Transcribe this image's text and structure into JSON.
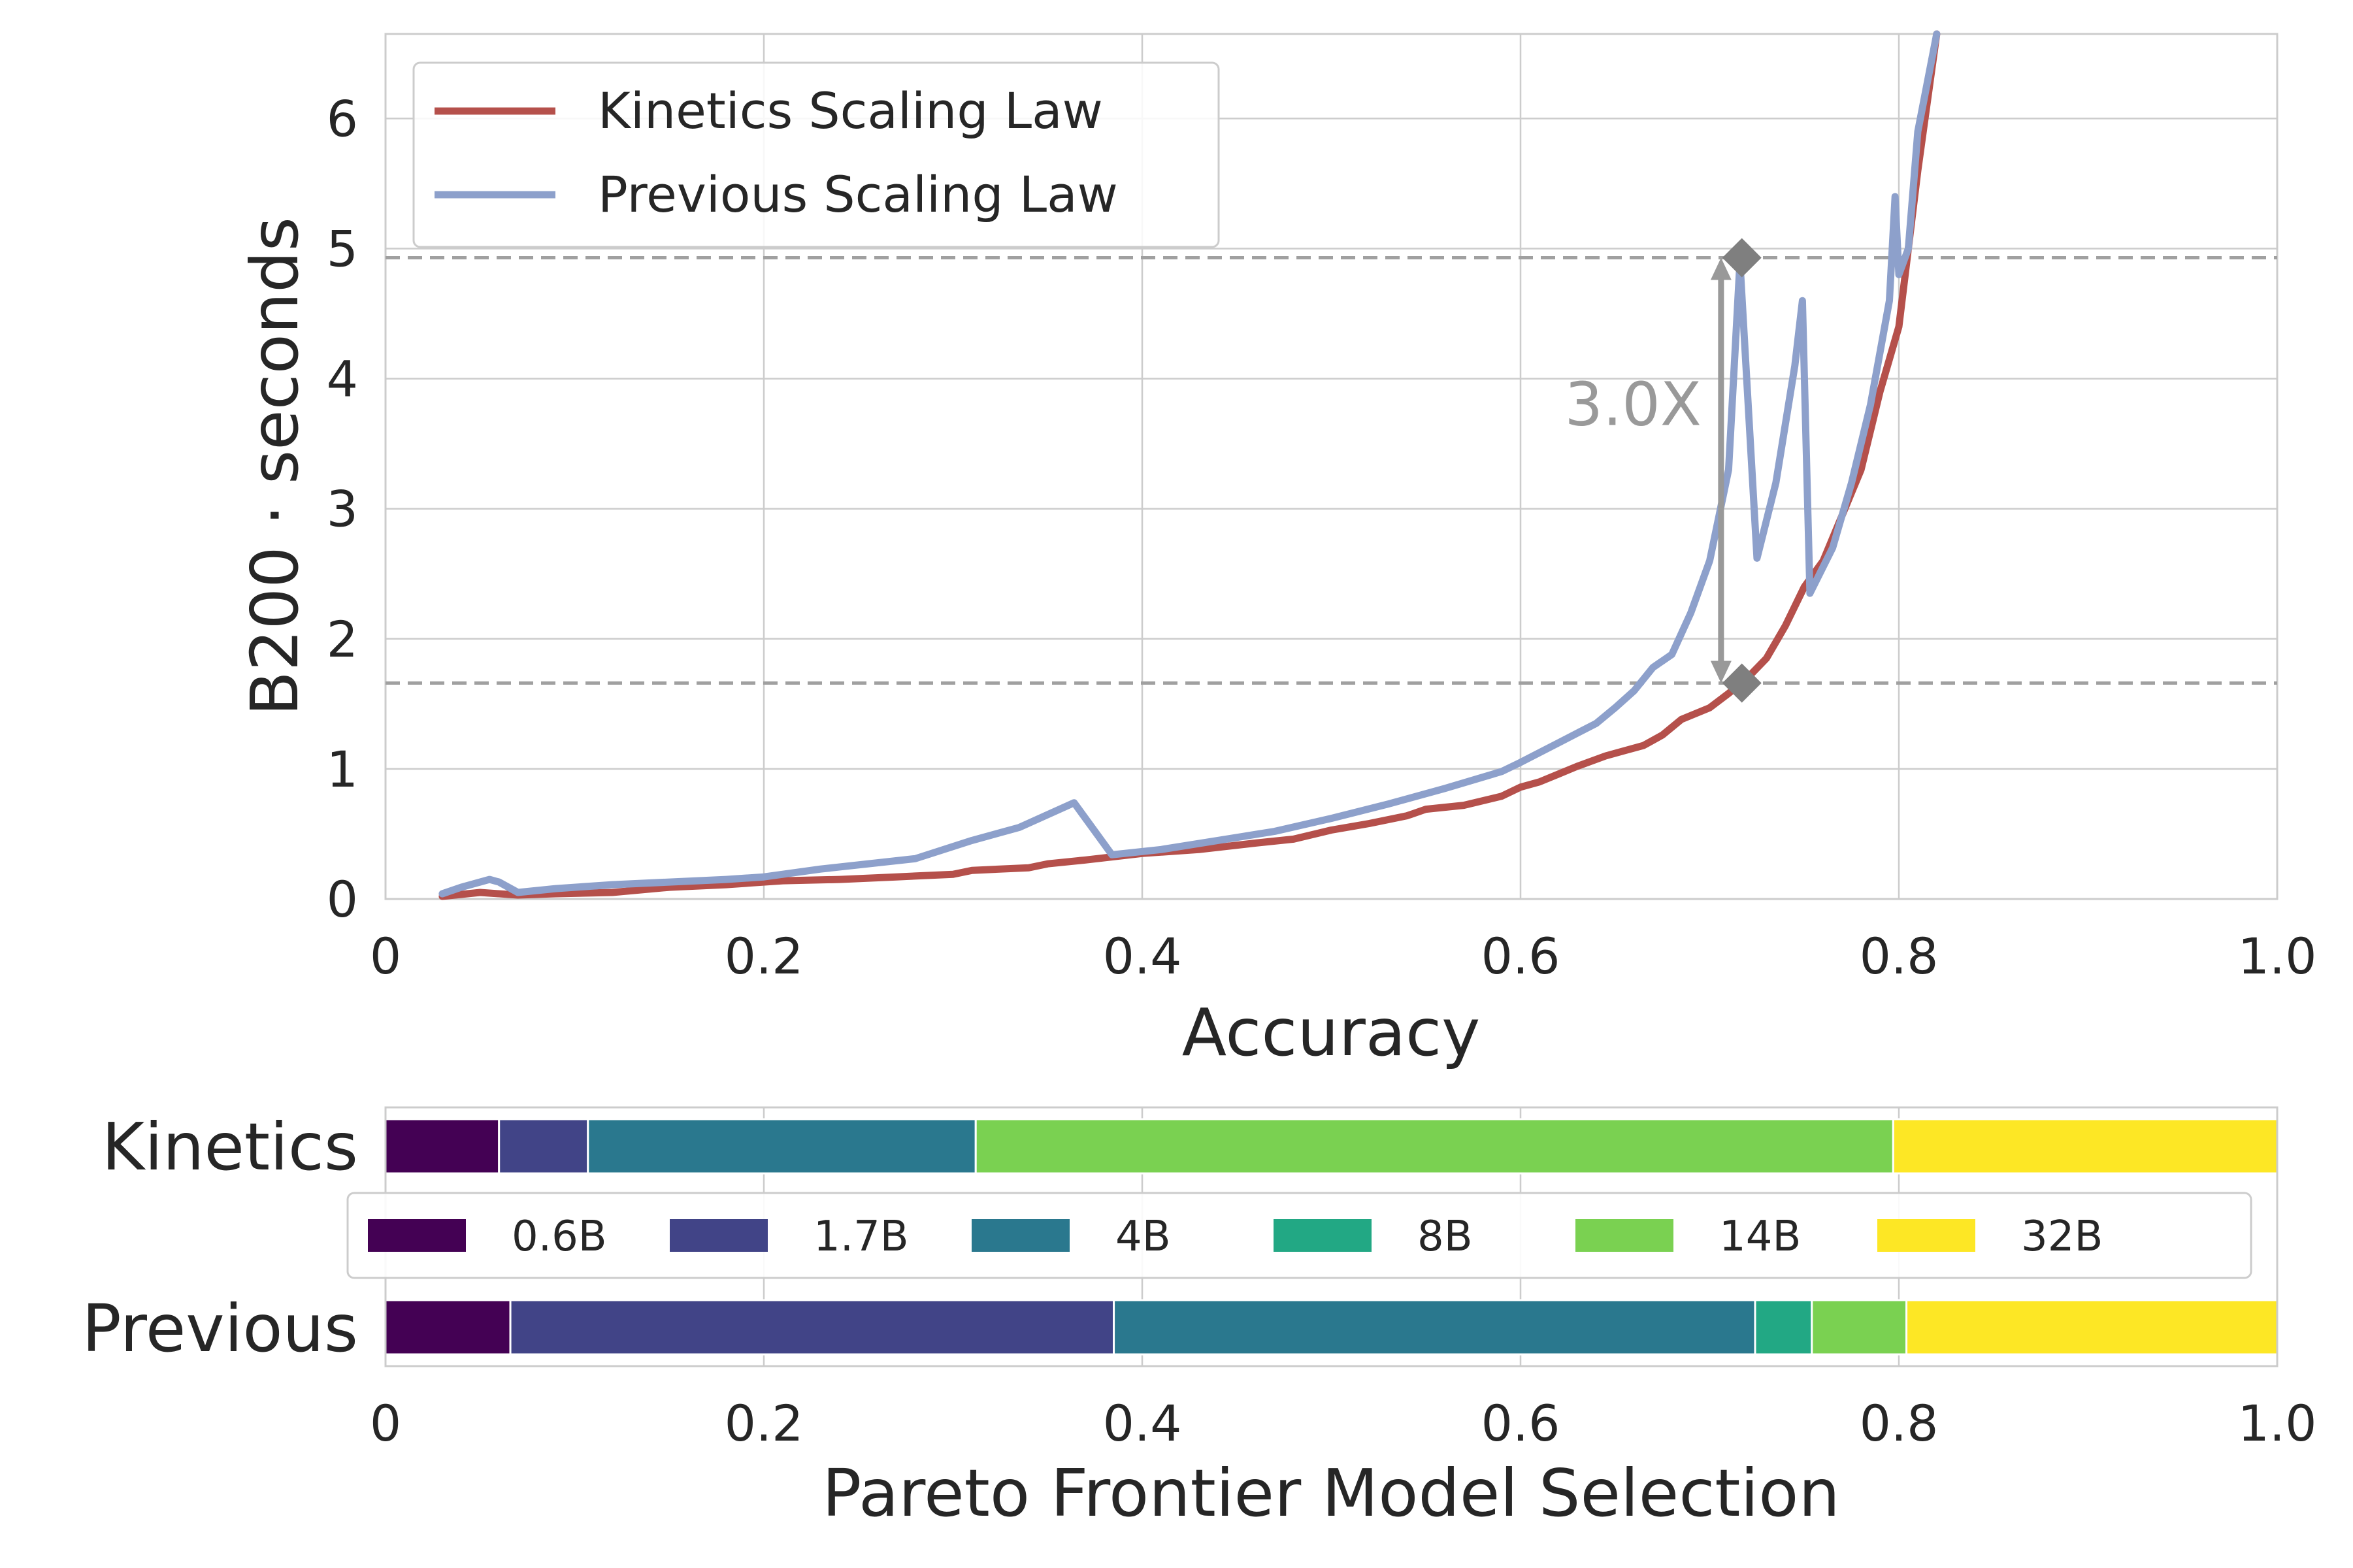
{
  "chart_data": [
    {
      "type": "line",
      "xlabel": "Accuracy",
      "ylabel": "B200 · seconds",
      "xlim": [
        0,
        1.0
      ],
      "ylim": [
        0,
        6.65
      ],
      "xticks": [
        "0",
        "0.2",
        "0.4",
        "0.6",
        "0.8",
        "1.0"
      ],
      "yticks": [
        "0",
        "1",
        "2",
        "3",
        "4",
        "5",
        "6"
      ],
      "grid": true,
      "legend": "top-left",
      "series": [
        {
          "name": "Kinetics Scaling Law",
          "color": "#b5504b",
          "x": [
            0.03,
            0.05,
            0.07,
            0.09,
            0.12,
            0.15,
            0.18,
            0.21,
            0.24,
            0.27,
            0.3,
            0.31,
            0.34,
            0.35,
            0.37,
            0.4,
            0.43,
            0.46,
            0.48,
            0.5,
            0.52,
            0.54,
            0.55,
            0.57,
            0.59,
            0.6,
            0.61,
            0.62,
            0.63,
            0.645,
            0.655,
            0.665,
            0.675,
            0.685,
            0.7,
            0.71,
            0.72,
            0.73,
            0.74,
            0.75,
            0.76,
            0.77,
            0.78,
            0.79,
            0.8,
            0.81,
            0.82
          ],
          "y": [
            0.02,
            0.05,
            0.03,
            0.04,
            0.05,
            0.09,
            0.11,
            0.14,
            0.15,
            0.17,
            0.19,
            0.22,
            0.24,
            0.27,
            0.3,
            0.35,
            0.38,
            0.43,
            0.46,
            0.53,
            0.58,
            0.64,
            0.69,
            0.72,
            0.79,
            0.86,
            0.9,
            0.96,
            1.02,
            1.1,
            1.14,
            1.18,
            1.26,
            1.38,
            1.47,
            1.58,
            1.7,
            1.85,
            2.1,
            2.4,
            2.6,
            2.95,
            3.3,
            3.9,
            4.4,
            5.6,
            6.65
          ]
        },
        {
          "name": "Previous Scaling Law",
          "color": "#8da0cb",
          "x": [
            0.03,
            0.04,
            0.055,
            0.06,
            0.07,
            0.09,
            0.12,
            0.15,
            0.18,
            0.2,
            0.23,
            0.28,
            0.31,
            0.335,
            0.364,
            0.384,
            0.41,
            0.44,
            0.47,
            0.5,
            0.53,
            0.56,
            0.59,
            0.6,
            0.62,
            0.64,
            0.65,
            0.66,
            0.67,
            0.68,
            0.69,
            0.7,
            0.71,
            0.716,
            0.725,
            0.735,
            0.745,
            0.749,
            0.753,
            0.765,
            0.775,
            0.785,
            0.795,
            0.798,
            0.8,
            0.805,
            0.81,
            0.82
          ],
          "y": [
            0.04,
            0.09,
            0.15,
            0.13,
            0.05,
            0.08,
            0.11,
            0.13,
            0.15,
            0.17,
            0.23,
            0.31,
            0.45,
            0.55,
            0.74,
            0.34,
            0.38,
            0.45,
            0.52,
            0.62,
            0.73,
            0.85,
            0.98,
            1.05,
            1.2,
            1.35,
            1.47,
            1.6,
            1.78,
            1.88,
            2.2,
            2.6,
            3.3,
            4.9,
            2.62,
            3.2,
            4.1,
            4.6,
            2.35,
            2.7,
            3.2,
            3.8,
            4.6,
            5.4,
            4.8,
            5.0,
            5.9,
            6.65
          ]
        }
      ],
      "reference_lines": [
        4.93,
        1.66
      ],
      "markers": [
        {
          "x": 0.717,
          "y": 4.93
        },
        {
          "x": 0.717,
          "y": 1.66
        }
      ],
      "annotation": {
        "text": "3.0X",
        "x": 0.706,
        "y_from": 1.66,
        "y_to": 4.93
      }
    },
    {
      "type": "bar",
      "orientation": "horizontal",
      "stacked": true,
      "xlabel": "Pareto Frontier Model Selection",
      "xlim": [
        0,
        1.0
      ],
      "xticks": [
        "0",
        "0.2",
        "0.4",
        "0.6",
        "0.8",
        "1.0"
      ],
      "categories": [
        "Kinetics",
        "Previous"
      ],
      "legend": "center",
      "legend_entries": [
        {
          "label": "0.6B",
          "color": "#440154"
        },
        {
          "label": "1.7B",
          "color": "#414487"
        },
        {
          "label": "4B",
          "color": "#2a788e"
        },
        {
          "label": "8B",
          "color": "#22a884"
        },
        {
          "label": "14B",
          "color": "#7ad151"
        },
        {
          "label": "32B",
          "color": "#fde725"
        }
      ],
      "segments": {
        "Kinetics": [
          0.06,
          0.047,
          0.205,
          0,
          0.485,
          0.203
        ],
        "Previous": [
          0.066,
          0.319,
          0.339,
          0.03,
          0.05,
          0.196
        ]
      }
    }
  ]
}
